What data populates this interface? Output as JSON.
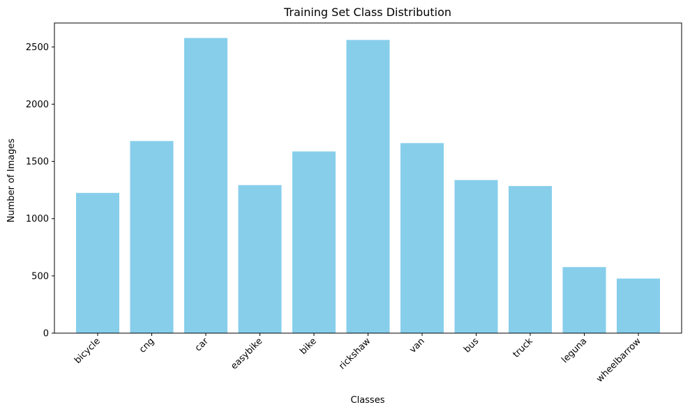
{
  "chart_data": {
    "type": "bar",
    "title": "Training Set Class Distribution",
    "xlabel": "Classes",
    "ylabel": "Number of Images",
    "categories": [
      "bicycle",
      "cng",
      "car",
      "easybike",
      "bike",
      "rickshaw",
      "van",
      "bus",
      "truck",
      "leguna",
      "wheelbarrow"
    ],
    "values": [
      1225,
      1678,
      2578,
      1293,
      1587,
      2561,
      1660,
      1337,
      1285,
      577,
      477
    ],
    "y_ticks": [
      0,
      500,
      1000,
      1500,
      2000,
      2500
    ],
    "ylim": [
      0,
      2709
    ],
    "bar_color": "#87ceeb",
    "grid": false,
    "legend": "none"
  }
}
